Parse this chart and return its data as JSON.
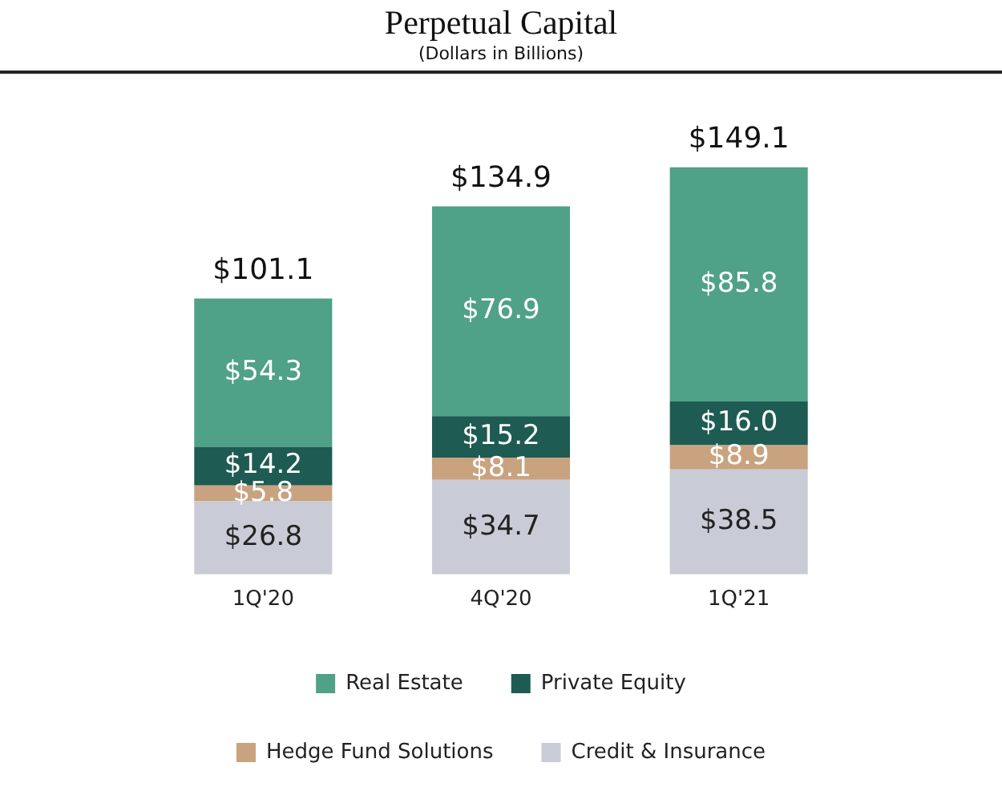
{
  "chart_data": {
    "type": "bar",
    "title": "Perpetual Capital",
    "subtitle": "(Dollars in Billions)",
    "categories": [
      "1Q'20",
      "4Q'20",
      "1Q'21"
    ],
    "stacked": true,
    "grid": false,
    "legend": "bottom",
    "series": [
      {
        "name": "Credit & Insurance",
        "color": "#c9cbd6",
        "values": [
          26.8,
          34.7,
          38.5
        ],
        "value_labels": [
          "$26.8",
          "$34.7",
          "$38.5"
        ]
      },
      {
        "name": "Hedge Fund Solutions",
        "color": "#c9a27f",
        "values": [
          5.8,
          8.1,
          8.9
        ],
        "value_labels": [
          "$5.8",
          "$8.1",
          "$8.9"
        ]
      },
      {
        "name": "Private Equity",
        "color": "#1e5b52",
        "values": [
          14.2,
          15.2,
          16.0
        ],
        "value_labels": [
          "$14.2",
          "$15.2",
          "$16.0"
        ]
      },
      {
        "name": "Real Estate",
        "color": "#4fa187",
        "values": [
          54.3,
          76.9,
          85.8
        ],
        "value_labels": [
          "$54.3",
          "$76.9",
          "$85.8"
        ]
      }
    ],
    "totals": [
      "$101.1",
      "$134.9",
      "$149.1"
    ]
  }
}
